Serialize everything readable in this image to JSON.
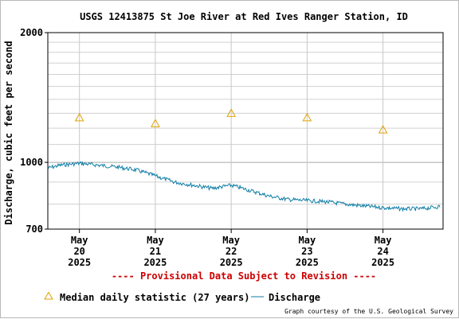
{
  "chart_data": {
    "type": "line",
    "title": "USGS 12413875 St Joe River at Red Ives Ranger Station, ID",
    "ylabel": "Discharge, cubic feet per second",
    "xlabel": "",
    "y_scale": "log",
    "ylim": [
      700,
      2000
    ],
    "y_ticks": [
      {
        "value": 700,
        "label": "700"
      },
      {
        "value": 1000,
        "label": "1000"
      },
      {
        "value": 2000,
        "label": "2000"
      }
    ],
    "x_range": [
      "2025-05-19T14:00",
      "2025-05-24T19:00"
    ],
    "x_ticks": [
      {
        "date": "2025-05-20",
        "label": [
          "May",
          "20",
          "2025"
        ]
      },
      {
        "date": "2025-05-21",
        "label": [
          "May",
          "21",
          "2025"
        ]
      },
      {
        "date": "2025-05-22",
        "label": [
          "May",
          "22",
          "2025"
        ]
      },
      {
        "date": "2025-05-23",
        "label": [
          "May",
          "23",
          "2025"
        ]
      },
      {
        "date": "2025-05-24",
        "label": [
          "May",
          "24",
          "2025"
        ]
      }
    ],
    "grid": true,
    "series": [
      {
        "name": "Discharge",
        "kind": "line",
        "color": "#0f7ea6",
        "points": [
          {
            "x": "2025-05-19T14:00",
            "y": 970
          },
          {
            "x": "2025-05-19T18:00",
            "y": 985
          },
          {
            "x": "2025-05-20T00:00",
            "y": 995
          },
          {
            "x": "2025-05-20T06:00",
            "y": 985
          },
          {
            "x": "2025-05-20T12:00",
            "y": 975
          },
          {
            "x": "2025-05-20T18:00",
            "y": 960
          },
          {
            "x": "2025-05-21T00:00",
            "y": 930
          },
          {
            "x": "2025-05-21T06:00",
            "y": 900
          },
          {
            "x": "2025-05-21T12:00",
            "y": 885
          },
          {
            "x": "2025-05-21T18:00",
            "y": 870
          },
          {
            "x": "2025-05-22T00:00",
            "y": 885
          },
          {
            "x": "2025-05-22T06:00",
            "y": 860
          },
          {
            "x": "2025-05-22T12:00",
            "y": 835
          },
          {
            "x": "2025-05-22T18:00",
            "y": 820
          },
          {
            "x": "2025-05-23T00:00",
            "y": 815
          },
          {
            "x": "2025-05-23T06:00",
            "y": 810
          },
          {
            "x": "2025-05-23T12:00",
            "y": 800
          },
          {
            "x": "2025-05-23T18:00",
            "y": 792
          },
          {
            "x": "2025-05-24T00:00",
            "y": 785
          },
          {
            "x": "2025-05-24T06:00",
            "y": 780
          },
          {
            "x": "2025-05-24T12:00",
            "y": 780
          },
          {
            "x": "2025-05-24T18:00",
            "y": 790
          }
        ]
      },
      {
        "name": "Median daily statistic (27 years)",
        "kind": "marker",
        "marker": "triangle",
        "color": "#e0a000",
        "points": [
          {
            "x": "2025-05-20T00:00",
            "y": 1270
          },
          {
            "x": "2025-05-21T00:00",
            "y": 1230
          },
          {
            "x": "2025-05-22T00:00",
            "y": 1300
          },
          {
            "x": "2025-05-23T00:00",
            "y": 1270
          },
          {
            "x": "2025-05-24T00:00",
            "y": 1190
          }
        ]
      }
    ],
    "legend": {
      "placement": "bottom-left",
      "entries": [
        {
          "label": "Median daily statistic (27 years)",
          "symbol": "triangle",
          "color": "#e0a000"
        },
        {
          "label": "Discharge",
          "symbol": "line",
          "color": "#0f7ea6"
        }
      ]
    }
  },
  "notice": "---- Provisional Data Subject to Revision ----",
  "notice_color": "#cc0000",
  "credit": "Graph courtesy of the U.S. Geological Survey"
}
